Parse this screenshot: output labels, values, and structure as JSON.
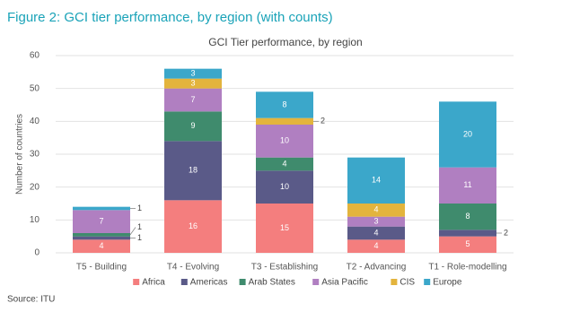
{
  "header": {
    "title": "Figure 2: GCI tier performance, by region (with counts)"
  },
  "chart_data": {
    "type": "stacked_bar",
    "title": "GCI Tier performance, by region",
    "y_label": "Number of countries",
    "categories": [
      "T5 - Building",
      "T4 - Evolving",
      "T3 - Establishing",
      "T2 - Advancing",
      "T1 - Role-modelling"
    ],
    "series": [
      {
        "name": "Africa",
        "color": "#f47e7e",
        "values": [
          4,
          16,
          15,
          4,
          5
        ]
      },
      {
        "name": "Americas",
        "color": "#5a5a88",
        "values": [
          1,
          18,
          10,
          4,
          2
        ]
      },
      {
        "name": "Arab States",
        "color": "#3f8b6d",
        "values": [
          1,
          9,
          4,
          0,
          8
        ]
      },
      {
        "name": "Asia Pacific",
        "color": "#b07fc1",
        "values": [
          7,
          7,
          10,
          3,
          11
        ]
      },
      {
        "name": "CIS",
        "color": "#e3b43d",
        "values": [
          0,
          3,
          2,
          4,
          0
        ]
      },
      {
        "name": "Europe",
        "color": "#3ba7ca",
        "values": [
          1,
          3,
          8,
          14,
          20
        ]
      }
    ],
    "ylim": [
      0,
      60
    ],
    "yticks": [
      0,
      10,
      20,
      30,
      40,
      50,
      60
    ],
    "grid": true,
    "legend": "bottom"
  },
  "footer": {
    "source": "Source: ITU"
  }
}
